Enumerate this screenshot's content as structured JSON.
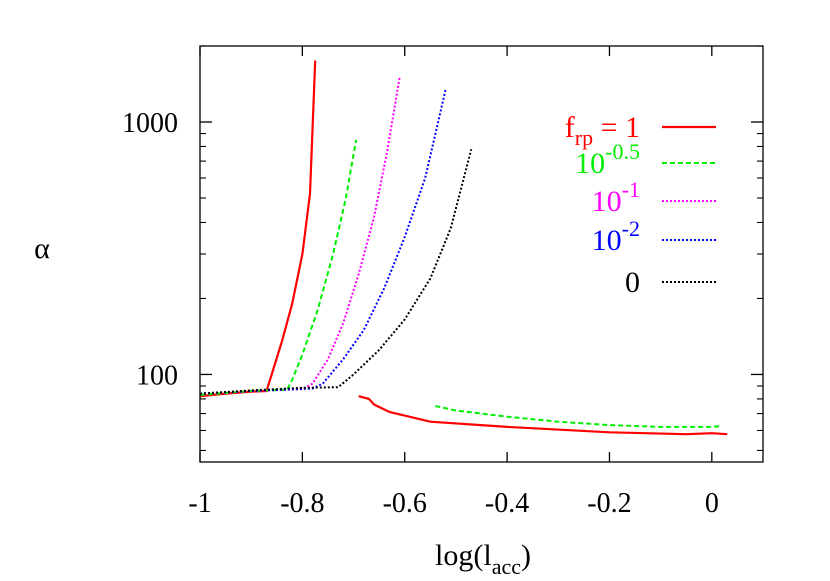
{
  "chart_data": {
    "type": "line",
    "xlabel": "log(l",
    "xlabel_sub": "acc",
    "xlabel_close": ")",
    "ylabel": "α",
    "xlim": [
      -1,
      0.1
    ],
    "ylim": [
      45,
      2000
    ],
    "yscale": "log",
    "x_ticks": [
      -1,
      -0.8,
      -0.6,
      -0.4,
      -0.2,
      0
    ],
    "x_tick_labels": [
      "-1",
      "-0.8",
      "-0.6",
      "-0.4",
      "-0.2",
      "0"
    ],
    "y_ticks": [
      100,
      1000
    ],
    "y_tick_labels": [
      "100",
      "1000"
    ],
    "grid": false,
    "legend_position": "top-right",
    "series": [
      {
        "name": "f_rp = 1",
        "legend": {
          "base": "f",
          "sub": "rp",
          "rest": " = 1"
        },
        "color": "#ff0000",
        "dash": "solid",
        "segments": [
          [
            [
              -1,
              82
            ],
            [
              -0.95,
              84
            ],
            [
              -0.9,
              85.5
            ],
            [
              -0.87,
              86
            ],
            [
              -0.86,
              100
            ],
            [
              -0.84,
              135
            ],
            [
              -0.82,
              190
            ],
            [
              -0.8,
              300
            ],
            [
              -0.785,
              520
            ],
            [
              -0.775,
              1750
            ]
          ],
          [
            [
              -0.69,
              82
            ],
            [
              -0.67,
              80
            ],
            [
              -0.66,
              76
            ],
            [
              -0.63,
              71
            ],
            [
              -0.55,
              65
            ],
            [
              -0.4,
              62
            ],
            [
              -0.2,
              59
            ],
            [
              -0.05,
              58
            ],
            [
              0,
              58.5
            ],
            [
              0.03,
              58
            ]
          ]
        ]
      },
      {
        "name": "10^-0.5",
        "legend": {
          "base": "10",
          "sup": "-0.5"
        },
        "color": "#00ee00",
        "dash": "dashed",
        "segments": [
          [
            [
              -1,
              83
            ],
            [
              -0.95,
              84.5
            ],
            [
              -0.9,
              86
            ],
            [
              -0.83,
              87
            ],
            [
              -0.82,
              95
            ],
            [
              -0.8,
              120
            ],
            [
              -0.77,
              180
            ],
            [
              -0.74,
              300
            ],
            [
              -0.715,
              500
            ],
            [
              -0.695,
              850
            ]
          ],
          [
            [
              -0.54,
              75
            ],
            [
              -0.5,
              72
            ],
            [
              -0.4,
              68
            ],
            [
              -0.3,
              65
            ],
            [
              -0.2,
              63
            ],
            [
              -0.1,
              62
            ],
            [
              0,
              62
            ],
            [
              0.02,
              62.5
            ]
          ]
        ]
      },
      {
        "name": "10^-1",
        "legend": {
          "base": "10",
          "sup": "-1"
        },
        "color": "#ff00ff",
        "dash": "dotted",
        "segments": [
          [
            [
              -1,
              84
            ],
            [
              -0.9,
              86
            ],
            [
              -0.8,
              87.5
            ],
            [
              -0.78,
              92
            ],
            [
              -0.75,
              115
            ],
            [
              -0.72,
              160
            ],
            [
              -0.69,
              250
            ],
            [
              -0.66,
              420
            ],
            [
              -0.635,
              750
            ],
            [
              -0.61,
              1500
            ]
          ]
        ]
      },
      {
        "name": "10^-2",
        "legend": {
          "base": "10",
          "sup": "-2"
        },
        "color": "#0000ff",
        "dash": "dotted",
        "segments": [
          [
            [
              -1,
              84
            ],
            [
              -0.9,
              86
            ],
            [
              -0.78,
              88
            ],
            [
              -0.76,
              92
            ],
            [
              -0.72,
              115
            ],
            [
              -0.68,
              150
            ],
            [
              -0.64,
              220
            ],
            [
              -0.6,
              350
            ],
            [
              -0.56,
              600
            ],
            [
              -0.52,
              1350
            ]
          ]
        ]
      },
      {
        "name": "0",
        "legend": {
          "base": "0"
        },
        "color": "#000000",
        "dash": "dotted",
        "segments": [
          [
            [
              -1,
              84
            ],
            [
              -0.9,
              86.5
            ],
            [
              -0.8,
              88.5
            ],
            [
              -0.73,
              89
            ],
            [
              -0.7,
              100
            ],
            [
              -0.65,
              125
            ],
            [
              -0.6,
              165
            ],
            [
              -0.55,
              240
            ],
            [
              -0.51,
              380
            ],
            [
              -0.47,
              780
            ]
          ]
        ]
      }
    ]
  }
}
